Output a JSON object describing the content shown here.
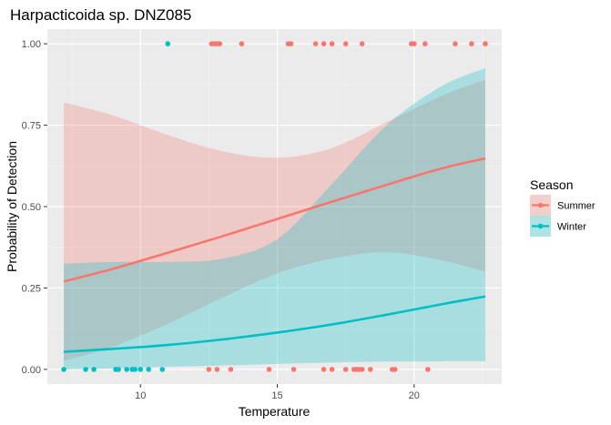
{
  "chart_data": {
    "type": "scatter",
    "title": "Harpacticoida sp. DNZ085",
    "xlabel": "Temperature",
    "ylabel": "Probability of Detection",
    "xlim": [
      6.6,
      23.2
    ],
    "ylim": [
      -0.045,
      1.045
    ],
    "x_ticks": [
      10,
      15,
      20
    ],
    "y_ticks": [
      0.0,
      0.25,
      0.5,
      0.75,
      1.0
    ],
    "y_tick_labels": [
      "0.00",
      "0.25",
      "0.50",
      "0.75",
      "1.00"
    ],
    "grid": true,
    "legend": {
      "title": "Season",
      "placement": "right"
    },
    "series": [
      {
        "name": "Summer",
        "color": "#F8766D",
        "points_detected": [
          12.6,
          12.7,
          12.8,
          12.9,
          13.7,
          15.4,
          15.5,
          16.4,
          16.7,
          17.0,
          17.5,
          18.1,
          19.9,
          20.0,
          20.4,
          21.5,
          22.1,
          22.6
        ],
        "points_not_detected": [
          12.5,
          12.8,
          13.3,
          14.7,
          15.6,
          16.7,
          17.0,
          17.5,
          17.8,
          17.9,
          18.0,
          18.1,
          18.4,
          19.2,
          19.3,
          20.5
        ],
        "fit": {
          "x": [
            7.2,
            9,
            11,
            13,
            15,
            17,
            19,
            21,
            22.6
          ],
          "y": [
            0.27,
            0.309,
            0.358,
            0.409,
            0.462,
            0.515,
            0.567,
            0.617,
            0.648
          ]
        },
        "ci_lower": {
          "x": [
            7.2,
            9,
            11,
            13,
            15,
            17,
            19,
            21,
            22.6
          ],
          "y": [
            0.026,
            0.07,
            0.14,
            0.22,
            0.295,
            0.34,
            0.36,
            0.335,
            0.3
          ]
        },
        "ci_upper": {
          "x": [
            7.2,
            9,
            11,
            13,
            15,
            17,
            19,
            21,
            22.6
          ],
          "y": [
            0.82,
            0.78,
            0.72,
            0.67,
            0.65,
            0.68,
            0.76,
            0.84,
            0.89
          ]
        }
      },
      {
        "name": "Winter",
        "color": "#00BFC4",
        "points_detected": [
          11.0
        ],
        "points_not_detected": [
          7.2,
          8.0,
          8.3,
          9.1,
          9.2,
          9.5,
          9.7,
          9.8,
          10.0,
          10.3,
          10.8
        ],
        "fit": {
          "x": [
            7.2,
            9,
            11,
            13,
            15,
            17,
            19,
            21,
            22.6
          ],
          "y": [
            0.054,
            0.063,
            0.075,
            0.092,
            0.113,
            0.138,
            0.168,
            0.2,
            0.224
          ]
        },
        "ci_lower": {
          "x": [
            7.2,
            9,
            11,
            13,
            15,
            17,
            19,
            21,
            22.6
          ],
          "y": [
            0.0,
            0.003,
            0.008,
            0.012,
            0.017,
            0.021,
            0.024,
            0.025,
            0.025
          ]
        },
        "ci_upper": {
          "x": [
            7.2,
            9,
            11,
            13,
            15,
            17,
            19,
            21,
            22.6
          ],
          "y": [
            0.325,
            0.33,
            0.33,
            0.34,
            0.4,
            0.57,
            0.75,
            0.87,
            0.925
          ]
        }
      }
    ]
  }
}
